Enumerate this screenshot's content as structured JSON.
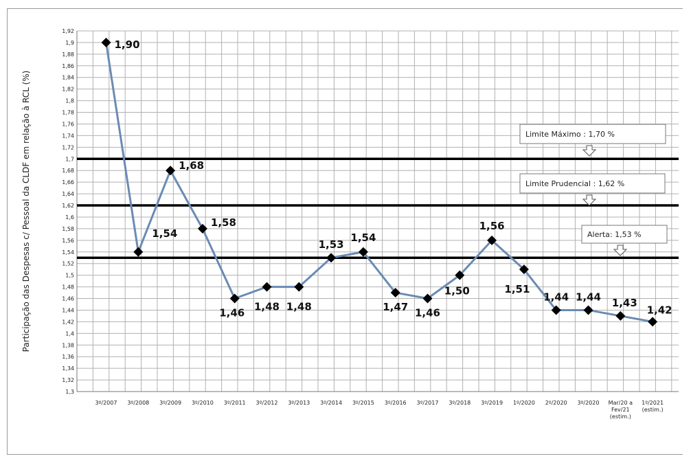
{
  "chart_data": {
    "type": "line",
    "title": "",
    "xlabel": "",
    "ylabel": "Participação das Despesas c/ Pessoal da CLDF em relação à RCL  (%)",
    "ylim": [
      1.3,
      1.92
    ],
    "yticks": [
      "1,3",
      "1,32",
      "1,34",
      "1,36",
      "1,38",
      "1,4",
      "1,42",
      "1,44",
      "1,46",
      "1,48",
      "1,5",
      "1,52",
      "1,54",
      "1,56",
      "1,58",
      "1,6",
      "1,62",
      "1,64",
      "1,66",
      "1,68",
      "1,7",
      "1,72",
      "1,74",
      "1,76",
      "1,78",
      "1,8",
      "1,82",
      "1,84",
      "1,86",
      "1,88",
      "1,9",
      "1,92"
    ],
    "grid": true,
    "categories": [
      [
        "3º/2007"
      ],
      [
        "3º/2008"
      ],
      [
        "3º/2009"
      ],
      [
        "3º/2010"
      ],
      [
        "3º/2011"
      ],
      [
        "3º/2012"
      ],
      [
        "3º/2013"
      ],
      [
        "3º/2014"
      ],
      [
        "3º/2015"
      ],
      [
        "3º/2016"
      ],
      [
        "3º/2017"
      ],
      [
        "3º/2018"
      ],
      [
        "3º/2019"
      ],
      [
        "1º/2020"
      ],
      [
        "2º/2020"
      ],
      [
        "3º/2020"
      ],
      [
        "Mar/20 a",
        "Fev/21",
        "(estim.)"
      ],
      [
        "1º/2021",
        "(estim.)"
      ]
    ],
    "series": [
      {
        "values": [
          1.9,
          1.54,
          1.68,
          1.58,
          1.46,
          1.48,
          1.48,
          1.53,
          1.54,
          1.47,
          1.46,
          1.5,
          1.56,
          1.51,
          1.44,
          1.44,
          1.43,
          1.42
        ],
        "labels": [
          "1,90",
          "1,54",
          "1,68",
          "1,58",
          "1,46",
          "1,48",
          "1,48",
          "1,53",
          "1,54",
          "1,47",
          "1,46",
          "1,50",
          "1,56",
          "1,51",
          "1,44",
          "1,44",
          "1,43",
          "1,42"
        ],
        "color": "#6a8bb3"
      }
    ],
    "reference_lines": [
      {
        "value": 1.7,
        "label": "Limite Máximo :  1,70 %"
      },
      {
        "value": 1.62,
        "label": "Limite Prudencial :  1,62 %"
      },
      {
        "value": 1.53,
        "label": "Alerta: 1,53 %"
      }
    ]
  },
  "colors": {
    "line": "#6a8bb3",
    "marker": "#000000",
    "grid": "#b0b0b0",
    "reference": "#000000"
  }
}
